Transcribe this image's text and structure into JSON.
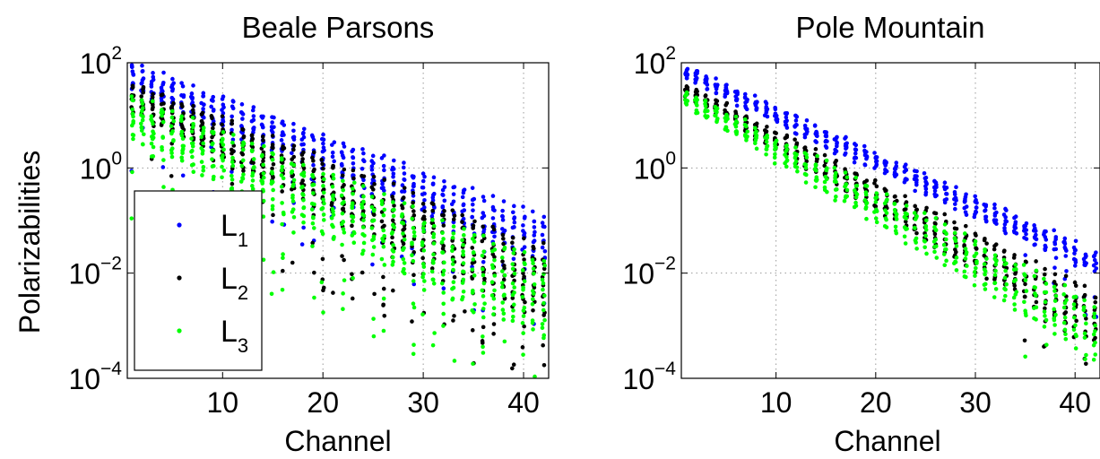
{
  "colors": {
    "L1": "#0000ff",
    "L2": "#000000",
    "L3": "#00ff00"
  },
  "chart_data": [
    {
      "type": "scatter",
      "title": "Beale Parsons",
      "xlabel": "Channel",
      "ylabel": "Polarizabilities",
      "xlim": [
        0.5,
        42.5
      ],
      "ylim": [
        0.0001,
        100
      ],
      "yscale": "log",
      "grid": true,
      "xticks": [
        10,
        20,
        30,
        40
      ],
      "yticks": [
        {
          "base": "10",
          "exp": "2",
          "value": 100
        },
        {
          "base": "10",
          "exp": "0",
          "value": 1
        },
        {
          "base": "10",
          "exp": "−2",
          "value": 0.01
        },
        {
          "base": "10",
          "exp": "−4",
          "value": 0.0001
        }
      ],
      "legend": {
        "placement": "lower-left",
        "entries": [
          {
            "base": "L",
            "sub": "1",
            "color": "#0000ff"
          },
          {
            "base": "L",
            "sub": "2",
            "color": "#000000"
          },
          {
            "base": "L",
            "sub": "3",
            "color": "#00ff00"
          }
        ]
      },
      "series": [
        {
          "name": "L1",
          "color": "#0000ff",
          "top_log10": [
            1.95,
            -0.95
          ],
          "bottom_log10": [
            1.45,
            -1.75
          ],
          "channels_per_step": 1,
          "samples_per_channel": 12
        },
        {
          "name": "L2",
          "color": "#000000",
          "top_log10": [
            1.6,
            -1.5
          ],
          "bottom_log10": [
            1.05,
            -2.9
          ],
          "channels_per_step": 1,
          "samples_per_channel": 14
        },
        {
          "name": "L3",
          "color": "#00ff00",
          "top_log10": [
            1.35,
            -1.8
          ],
          "bottom_log10": [
            0.55,
            -3.3
          ],
          "channels_per_step": 1,
          "samples_per_channel": 14
        }
      ]
    },
    {
      "type": "scatter",
      "title": "Pole Mountain",
      "xlabel": "Channel",
      "ylabel": "",
      "xlim": [
        0.5,
        42.5
      ],
      "ylim": [
        0.0001,
        100
      ],
      "yscale": "log",
      "grid": true,
      "xticks": [
        10,
        20,
        30,
        40
      ],
      "yticks": [
        {
          "base": "10",
          "exp": "2",
          "value": 100
        },
        {
          "base": "10",
          "exp": "0",
          "value": 1
        },
        {
          "base": "10",
          "exp": "−2",
          "value": 0.01
        },
        {
          "base": "10",
          "exp": "−4",
          "value": 0.0001
        }
      ],
      "series": [
        {
          "name": "L1",
          "color": "#0000ff",
          "top_log10": [
            1.9,
            -1.6
          ],
          "bottom_log10": [
            1.7,
            -2.0
          ],
          "channels_per_step": 1,
          "samples_per_channel": 10
        },
        {
          "name": "L2",
          "color": "#000000",
          "top_log10": [
            1.55,
            -2.4
          ],
          "bottom_log10": [
            1.4,
            -3.3
          ],
          "channels_per_step": 1,
          "samples_per_channel": 10
        },
        {
          "name": "L3",
          "color": "#00ff00",
          "top_log10": [
            1.45,
            -2.6
          ],
          "bottom_log10": [
            1.2,
            -3.6
          ],
          "channels_per_step": 1,
          "samples_per_channel": 10
        }
      ]
    }
  ]
}
